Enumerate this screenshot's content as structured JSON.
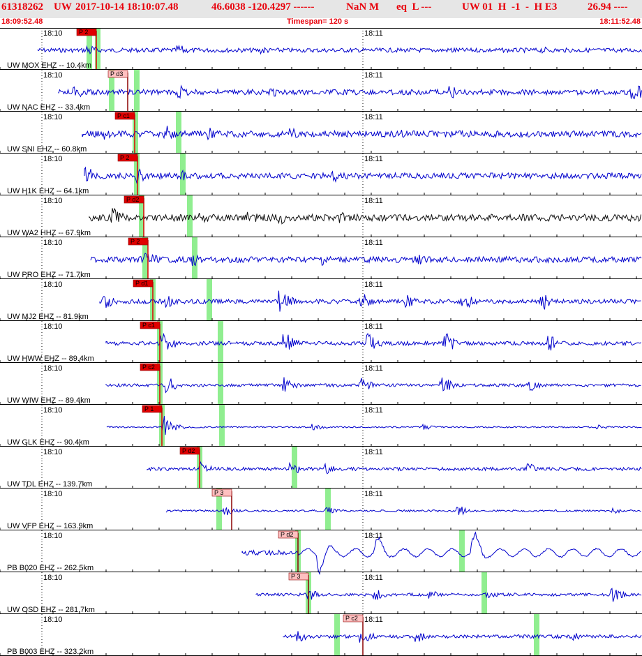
{
  "header": {
    "event_id": "61318262",
    "network": "UW",
    "origin_time": "2017-10-14 18:10:07.48",
    "latlon": "46.6038 -120.4297 ------",
    "magnitude": "NaN M",
    "event_type": "eq  L ---",
    "solution": "UW 01  H  -1  -  H E3",
    "extra": "26.94 ----"
  },
  "subheader": {
    "start_time": "18:09:52.48",
    "timespan": "Timespan= 120 s",
    "end_time": "18:11:52.48"
  },
  "time_ticks": {
    "first": "18:10",
    "second": "18:11"
  },
  "colors": {
    "trace": "#0000cc",
    "hhz_trace": "#111111",
    "pick_red": "#e00000",
    "pick_pink": "#ffc0c0",
    "green_band": "#90ee90",
    "header_bg": "#e6e6e6",
    "header_text": "#e8000b"
  },
  "traces": [
    {
      "label": "UW MOX EHZ -- 10.4km",
      "pick": "P 2",
      "pick_style": "red"
    },
    {
      "label": "UW NAC EHZ -- 33.4km",
      "pick": "P d3",
      "pick_style": "pink"
    },
    {
      "label": "UW SNI EHZ -- 60.8km",
      "pick": "P c1",
      "pick_style": "red"
    },
    {
      "label": "UW H1K EHZ -- 64.1km",
      "pick": "P 2",
      "pick_style": "red"
    },
    {
      "label": "UW WA2 HHZ -- 67.9km",
      "pick": "P d2",
      "pick_style": "red"
    },
    {
      "label": "UW PRO EHZ -- 71.7km",
      "pick": "P 2",
      "pick_style": "red"
    },
    {
      "label": "UW MJ2 EHZ -- 81.9km",
      "pick": "P d1",
      "pick_style": "red"
    },
    {
      "label": "UW HWW EHZ -- 89.4km",
      "pick": "P c1",
      "pick_style": "red"
    },
    {
      "label": "UW WIW EHZ -- 89.4km",
      "pick": "P c2",
      "pick_style": "red"
    },
    {
      "label": "UW GLK EHZ -- 90.4km",
      "pick": "P 1",
      "pick_style": "red"
    },
    {
      "label": "UW TDL EHZ -- 139.7km",
      "pick": "P d2",
      "pick_style": "red"
    },
    {
      "label": "UW VFP EHZ -- 163.9km",
      "pick": "P 3",
      "pick_style": "pink"
    },
    {
      "label": "PB B020 EHZ -- 262.5km",
      "pick": "P d2",
      "pick_style": "pink"
    },
    {
      "label": "UW OSD EHZ -- 281.7km",
      "pick": "P 3",
      "pick_style": "pink"
    },
    {
      "label": "PB B003 EHZ -- 323.2km",
      "pick": "P c2",
      "pick_style": "pink"
    }
  ]
}
